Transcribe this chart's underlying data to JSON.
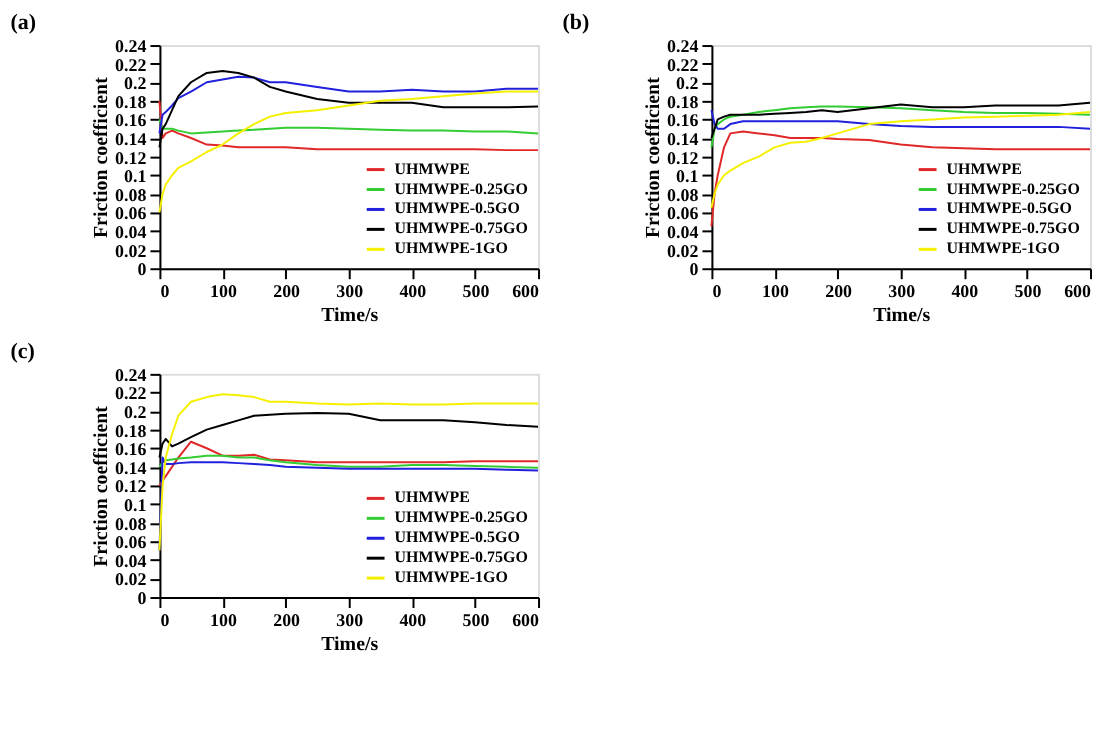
{
  "chart_data": [
    {
      "type": "line",
      "title": "(a)",
      "xlabel": "Time/s",
      "ylabel": "Friction coefficient",
      "x": [
        0,
        5,
        10,
        20,
        30,
        50,
        75,
        100,
        125,
        150,
        175,
        200,
        250,
        300,
        350,
        400,
        450,
        500,
        550,
        600
      ],
      "xlim": [
        0,
        600
      ],
      "xticks": [
        0,
        100,
        200,
        300,
        400,
        500,
        600
      ],
      "ylim": [
        0,
        0.24
      ],
      "yticks": [
        0,
        0.02,
        0.04,
        0.06,
        0.08,
        0.1,
        0.12,
        0.14,
        0.16,
        0.18,
        0.2,
        0.22,
        0.24
      ],
      "grid": false,
      "legend": "bottom right",
      "marker": "none",
      "line_style": "solid",
      "series": [
        {
          "name": "UHMWPE",
          "color": "#e02828",
          "values": [
            0.18,
            0.14,
            0.145,
            0.148,
            0.145,
            0.14,
            0.133,
            0.132,
            0.13,
            0.13,
            0.13,
            0.13,
            0.128,
            0.128,
            0.128,
            0.128,
            0.128,
            0.128,
            0.127,
            0.127
          ]
        },
        {
          "name": "UHMWPE-0.25GO",
          "color": "#33cc33",
          "values": [
            0.16,
            0.15,
            0.15,
            0.15,
            0.148,
            0.145,
            0.146,
            0.147,
            0.148,
            0.149,
            0.15,
            0.151,
            0.151,
            0.15,
            0.149,
            0.148,
            0.148,
            0.147,
            0.147,
            0.145
          ]
        },
        {
          "name": "UHMWPE-0.5GO",
          "color": "#2020dd",
          "values": [
            0.145,
            0.165,
            0.168,
            0.175,
            0.183,
            0.19,
            0.2,
            0.203,
            0.206,
            0.205,
            0.2,
            0.2,
            0.195,
            0.19,
            0.19,
            0.192,
            0.19,
            0.19,
            0.193,
            0.193
          ]
        },
        {
          "name": "UHMWPE-0.75GO",
          "color": "#000000",
          "values": [
            0.13,
            0.15,
            0.155,
            0.17,
            0.185,
            0.2,
            0.21,
            0.212,
            0.21,
            0.205,
            0.195,
            0.19,
            0.182,
            0.178,
            0.178,
            0.178,
            0.173,
            0.173,
            0.173,
            0.174
          ]
        },
        {
          "name": "UHMWPE-1GO",
          "color": "#f5f000",
          "values": [
            0.06,
            0.08,
            0.09,
            0.1,
            0.108,
            0.115,
            0.125,
            0.133,
            0.145,
            0.155,
            0.163,
            0.167,
            0.17,
            0.175,
            0.18,
            0.182,
            0.185,
            0.188,
            0.19,
            0.19
          ]
        }
      ]
    },
    {
      "type": "line",
      "title": "(b)",
      "xlabel": "Time/s",
      "ylabel": "Friction coefficient",
      "x": [
        0,
        5,
        10,
        20,
        30,
        50,
        75,
        100,
        125,
        150,
        175,
        200,
        250,
        300,
        350,
        400,
        450,
        500,
        550,
        600
      ],
      "xlim": [
        0,
        600
      ],
      "xticks": [
        0,
        100,
        200,
        300,
        400,
        500,
        600
      ],
      "ylim": [
        0,
        0.24
      ],
      "yticks": [
        0,
        0.02,
        0.04,
        0.06,
        0.08,
        0.1,
        0.12,
        0.14,
        0.16,
        0.18,
        0.2,
        0.22,
        0.24
      ],
      "grid": false,
      "legend": "bottom right",
      "marker": "none",
      "line_style": "solid",
      "series": [
        {
          "name": "UHMWPE",
          "color": "#e02828",
          "values": [
            0.045,
            0.08,
            0.1,
            0.13,
            0.145,
            0.147,
            0.145,
            0.143,
            0.14,
            0.14,
            0.14,
            0.139,
            0.138,
            0.133,
            0.13,
            0.129,
            0.128,
            0.128,
            0.128,
            0.128
          ]
        },
        {
          "name": "UHMWPE-0.25GO",
          "color": "#33cc33",
          "values": [
            0.13,
            0.15,
            0.155,
            0.16,
            0.163,
            0.165,
            0.168,
            0.17,
            0.172,
            0.173,
            0.174,
            0.174,
            0.173,
            0.172,
            0.17,
            0.168,
            0.167,
            0.167,
            0.166,
            0.165
          ]
        },
        {
          "name": "UHMWPE-0.5GO",
          "color": "#2020dd",
          "values": [
            0.17,
            0.155,
            0.15,
            0.15,
            0.155,
            0.158,
            0.158,
            0.158,
            0.158,
            0.158,
            0.158,
            0.158,
            0.155,
            0.153,
            0.152,
            0.152,
            0.152,
            0.152,
            0.152,
            0.15
          ]
        },
        {
          "name": "UHMWPE-0.75GO",
          "color": "#000000",
          "values": [
            0.14,
            0.15,
            0.16,
            0.163,
            0.165,
            0.165,
            0.165,
            0.166,
            0.167,
            0.168,
            0.17,
            0.168,
            0.172,
            0.176,
            0.173,
            0.173,
            0.175,
            0.175,
            0.175,
            0.178
          ]
        },
        {
          "name": "UHMWPE-1GO",
          "color": "#f5f000",
          "values": [
            0.065,
            0.08,
            0.09,
            0.1,
            0.105,
            0.113,
            0.12,
            0.13,
            0.135,
            0.136,
            0.14,
            0.145,
            0.155,
            0.158,
            0.16,
            0.162,
            0.163,
            0.164,
            0.165,
            0.168
          ]
        }
      ]
    },
    {
      "type": "line",
      "title": "(c)",
      "xlabel": "Time/s",
      "ylabel": "Friction coefficient",
      "x": [
        0,
        5,
        10,
        20,
        30,
        50,
        75,
        100,
        125,
        150,
        175,
        200,
        250,
        300,
        350,
        400,
        450,
        500,
        550,
        600
      ],
      "xlim": [
        0,
        600
      ],
      "xticks": [
        0,
        100,
        200,
        300,
        400,
        500,
        600
      ],
      "ylim": [
        0,
        0.24
      ],
      "yticks": [
        0,
        0.02,
        0.04,
        0.06,
        0.08,
        0.1,
        0.12,
        0.14,
        0.16,
        0.18,
        0.2,
        0.22,
        0.24
      ],
      "grid": false,
      "legend": "bottom right",
      "marker": "none",
      "line_style": "solid",
      "series": [
        {
          "name": "UHMWPE",
          "color": "#e02828",
          "values": [
            0.12,
            0.125,
            0.13,
            0.14,
            0.15,
            0.167,
            0.16,
            0.152,
            0.152,
            0.153,
            0.148,
            0.147,
            0.145,
            0.145,
            0.145,
            0.145,
            0.145,
            0.146,
            0.146,
            0.146
          ]
        },
        {
          "name": "UHMWPE-0.25GO",
          "color": "#33cc33",
          "values": [
            0.14,
            0.145,
            0.147,
            0.148,
            0.149,
            0.15,
            0.152,
            0.152,
            0.15,
            0.15,
            0.147,
            0.145,
            0.142,
            0.14,
            0.14,
            0.142,
            0.142,
            0.141,
            0.14,
            0.139
          ]
        },
        {
          "name": "UHMWPE-0.5GO",
          "color": "#2020dd",
          "values": [
            0.05,
            0.15,
            0.143,
            0.143,
            0.144,
            0.145,
            0.145,
            0.145,
            0.144,
            0.143,
            0.142,
            0.14,
            0.139,
            0.138,
            0.138,
            0.138,
            0.138,
            0.138,
            0.137,
            0.136
          ]
        },
        {
          "name": "UHMWPE-0.75GO",
          "color": "#000000",
          "values": [
            0.15,
            0.165,
            0.17,
            0.162,
            0.165,
            0.172,
            0.18,
            0.185,
            0.19,
            0.195,
            0.196,
            0.197,
            0.198,
            0.197,
            0.19,
            0.19,
            0.19,
            0.188,
            0.185,
            0.183
          ]
        },
        {
          "name": "UHMWPE-1GO",
          "color": "#f5f000",
          "values": [
            0.05,
            0.12,
            0.15,
            0.175,
            0.195,
            0.21,
            0.215,
            0.218,
            0.217,
            0.215,
            0.21,
            0.21,
            0.208,
            0.207,
            0.208,
            0.207,
            0.207,
            0.208,
            0.208,
            0.208
          ]
        }
      ]
    }
  ]
}
